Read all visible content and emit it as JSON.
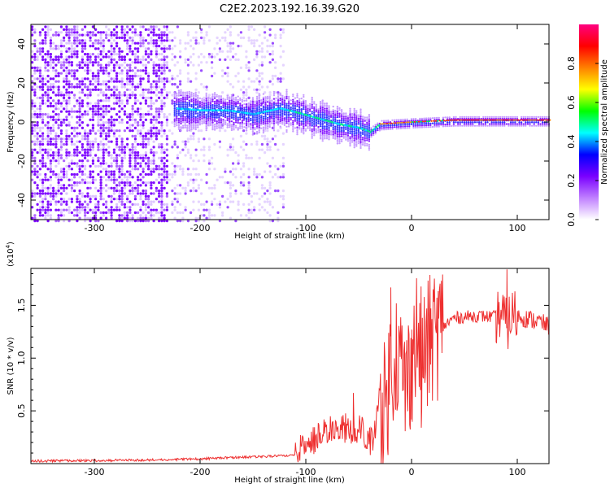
{
  "title": "C2E2.2023.192.16.39.G20",
  "chart_data": [
    {
      "type": "heatmap",
      "name": "spectrogram",
      "xlabel": "Height of straight line (km)",
      "ylabel": "Frequency (Hz)",
      "xlim": [
        -360,
        130
      ],
      "ylim": [
        -50,
        50
      ],
      "xticks": [
        -300,
        -200,
        -100,
        0,
        100
      ],
      "yticks": [
        -40,
        -20,
        0,
        20,
        40
      ],
      "ridge": [
        [
          -225,
          7
        ],
        [
          -200,
          6
        ],
        [
          -175,
          6
        ],
        [
          -150,
          4
        ],
        [
          -125,
          7
        ],
        [
          -110,
          5
        ],
        [
          -90,
          2
        ],
        [
          -70,
          -1
        ],
        [
          -50,
          -3
        ],
        [
          -40,
          -5
        ],
        [
          -30,
          -1
        ],
        [
          0,
          0
        ],
        [
          40,
          1
        ],
        [
          80,
          1
        ],
        [
          130,
          1
        ]
      ],
      "colorbar": {
        "label": "Normalized spectral amplitude",
        "range": [
          0,
          1
        ],
        "ticks": [
          "0.0",
          "0.2",
          "0.4",
          "0.6",
          "0.8"
        ],
        "colors": [
          "#ffffff",
          "#c080ff",
          "#7a00ff",
          "#0000ff",
          "#00ffff",
          "#00ff00",
          "#ffff00",
          "#ff8000",
          "#ff0000",
          "#ff0080"
        ]
      }
    },
    {
      "type": "line",
      "name": "snr",
      "xlabel": "Height of straight line (km)",
      "ylabel": "SNR (10 * v/v)",
      "y_scale_label": "(x10",
      "y_scale_exp": "4",
      "y_scale_close": ")",
      "xlim": [
        -360,
        130
      ],
      "ylim": [
        0,
        18500
      ],
      "xticks": [
        -300,
        -200,
        -100,
        0,
        100
      ],
      "yticks": [
        5000,
        10000,
        15000
      ],
      "ytick_labels": [
        "0.5",
        "1.0",
        "1.5"
      ],
      "color": "#ee3030",
      "x": [
        -360,
        -250,
        -200,
        -180,
        -150,
        -120,
        -100,
        -85,
        -70,
        -55,
        -45,
        -40,
        -35,
        -30,
        -25,
        -20,
        -15,
        -10,
        -5,
        0,
        5,
        10,
        15,
        20,
        30,
        40,
        60,
        80,
        85,
        90,
        95,
        100,
        110,
        120,
        130
      ],
      "y": [
        200,
        300,
        400,
        500,
        600,
        700,
        1000,
        2500,
        3000,
        2800,
        2600,
        1500,
        2500,
        6000,
        5000,
        9000,
        11000,
        9000,
        7000,
        10000,
        12000,
        10000,
        11000,
        12000,
        13000,
        13800,
        14000,
        13900,
        14300,
        13000,
        14200,
        14000,
        13700,
        13500,
        13000
      ],
      "spikes": [
        [
          -55,
          6700
        ],
        [
          -20,
          16700
        ],
        [
          -12,
          12700
        ],
        [
          -5,
          11700
        ],
        [
          0,
          12700
        ],
        [
          9,
          3400
        ],
        [
          18,
          14700
        ],
        [
          90,
          18400
        ],
        [
          80,
          11500
        ]
      ]
    }
  ]
}
